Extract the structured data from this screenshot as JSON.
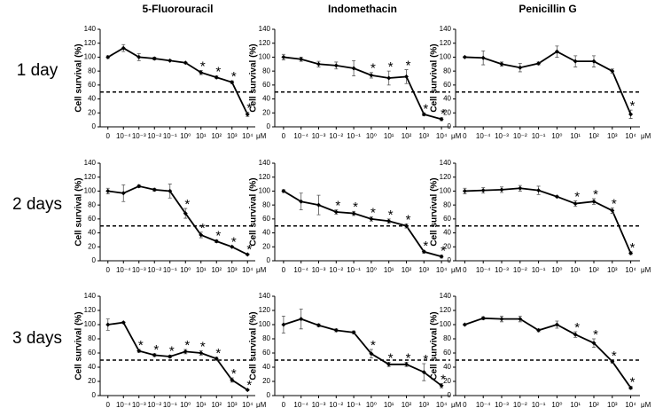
{
  "chart_data": [
    {
      "type": "line",
      "title": "5-Fluorouracil",
      "row_label": "1 day",
      "ylabel": "Cell survival (%)",
      "x_unit": "μM",
      "color": "#000000",
      "categories": [
        "0",
        "10⁻⁴",
        "10⁻³",
        "10⁻²",
        "10⁻¹",
        "10⁰",
        "10¹",
        "10²",
        "10³",
        "10⁴"
      ],
      "values": [
        100,
        113,
        100,
        98,
        95,
        92,
        78,
        71,
        64,
        18
      ],
      "errors": [
        2,
        5,
        5,
        2,
        1,
        1,
        3,
        2,
        2,
        3
      ],
      "significance": [
        null,
        null,
        null,
        null,
        null,
        null,
        "*",
        "*",
        "*",
        "*"
      ],
      "ylim": [
        0,
        140
      ],
      "yticks": [
        0,
        20,
        40,
        60,
        80,
        100,
        120,
        140
      ],
      "hline": 50
    },
    {
      "type": "line",
      "title": "Indomethacin",
      "ylabel": "Cell survival (%)",
      "x_unit": "μM",
      "color": "#000000",
      "categories": [
        "0",
        "10⁻⁴",
        "10⁻³",
        "10⁻²",
        "10⁻¹",
        "10⁰",
        "10¹",
        "10²",
        "10³",
        "10⁴"
      ],
      "values": [
        100,
        97,
        90,
        88,
        84,
        74,
        70,
        72,
        18,
        11
      ],
      "errors": [
        4,
        3,
        4,
        5,
        11,
        4,
        10,
        10,
        2,
        2
      ],
      "significance": [
        null,
        null,
        null,
        null,
        null,
        "*",
        "*",
        "*",
        "*",
        "*"
      ],
      "ylim": [
        0,
        140
      ],
      "yticks": [
        0,
        20,
        40,
        60,
        80,
        100,
        120,
        140
      ],
      "hline": 50
    },
    {
      "type": "line",
      "title": "Penicillin G",
      "ylabel": "Cell survival (%)",
      "x_unit": "μM",
      "color": "#000000",
      "categories": [
        "0",
        "10⁻⁴",
        "10⁻³",
        "10⁻²",
        "10⁻¹",
        "10⁰",
        "10¹",
        "10²",
        "10³",
        "10⁴"
      ],
      "values": [
        100,
        99,
        90,
        85,
        91,
        108,
        94,
        94,
        80,
        18
      ],
      "errors": [
        1,
        10,
        3,
        6,
        2,
        8,
        8,
        8,
        3,
        6
      ],
      "significance": [
        null,
        null,
        null,
        null,
        null,
        null,
        null,
        null,
        null,
        "*"
      ],
      "ylim": [
        0,
        140
      ],
      "yticks": [
        0,
        20,
        40,
        60,
        80,
        100,
        120,
        140
      ],
      "hline": 50
    },
    {
      "type": "line",
      "row_label": "2 days",
      "ylabel": "Cell survival (%)",
      "x_unit": "μM",
      "color": "#000000",
      "categories": [
        "0",
        "10⁻⁴",
        "10⁻³",
        "10⁻²",
        "10⁻¹",
        "10⁰",
        "10¹",
        "10²",
        "10³",
        "10⁴"
      ],
      "values": [
        100,
        97,
        107,
        102,
        100,
        68,
        37,
        28,
        20,
        9
      ],
      "errors": [
        4,
        12,
        2,
        2,
        10,
        7,
        4,
        2,
        1,
        1
      ],
      "significance": [
        null,
        null,
        null,
        null,
        null,
        "*",
        "*",
        "*",
        "*",
        "*"
      ],
      "ylim": [
        0,
        140
      ],
      "yticks": [
        0,
        20,
        40,
        60,
        80,
        100,
        120,
        140
      ],
      "hline": 50
    },
    {
      "type": "line",
      "ylabel": "Cell survival (%)",
      "x_unit": "μM",
      "color": "#000000",
      "categories": [
        "0",
        "10⁻⁴",
        "10⁻³",
        "10⁻²",
        "10⁻¹",
        "10⁰",
        "10¹",
        "10²",
        "10³",
        "10⁴"
      ],
      "values": [
        100,
        85,
        80,
        70,
        68,
        60,
        57,
        50,
        13,
        6
      ],
      "errors": [
        2,
        12,
        14,
        3,
        3,
        3,
        3,
        3,
        2,
        2
      ],
      "significance": [
        null,
        null,
        null,
        "*",
        "*",
        "*",
        "*",
        "*",
        "*",
        "*"
      ],
      "ylim": [
        0,
        140
      ],
      "yticks": [
        0,
        20,
        40,
        60,
        80,
        100,
        120,
        140
      ],
      "hline": 50
    },
    {
      "type": "line",
      "ylabel": "Cell survival (%)",
      "x_unit": "μM",
      "color": "#000000",
      "categories": [
        "0",
        "10⁻⁴",
        "10⁻³",
        "10⁻²",
        "10⁻¹",
        "10⁰",
        "10¹",
        "10²",
        "10³",
        "10⁴"
      ],
      "values": [
        100,
        101,
        102,
        104,
        101,
        92,
        82,
        85,
        72,
        11
      ],
      "errors": [
        4,
        4,
        4,
        4,
        6,
        1,
        4,
        4,
        4,
        2
      ],
      "significance": [
        null,
        null,
        null,
        null,
        null,
        null,
        "*",
        "*",
        "*",
        "*"
      ],
      "ylim": [
        0,
        140
      ],
      "yticks": [
        0,
        20,
        40,
        60,
        80,
        100,
        120,
        140
      ],
      "hline": 50
    },
    {
      "type": "line",
      "row_label": "3 days",
      "ylabel": "Cell survival (%)",
      "x_unit": "μM",
      "color": "#000000",
      "categories": [
        "0",
        "10⁻⁴",
        "10⁻³",
        "10⁻²",
        "10⁻¹",
        "10⁰",
        "10¹",
        "10²",
        "10³",
        "10⁴"
      ],
      "values": [
        100,
        103,
        63,
        57,
        55,
        62,
        60,
        52,
        22,
        8
      ],
      "errors": [
        8,
        1,
        2,
        2,
        2,
        3,
        3,
        2,
        3,
        1
      ],
      "significance": [
        null,
        null,
        "*",
        "*",
        "*",
        "*",
        "*",
        "*",
        "*",
        "*"
      ],
      "ylim": [
        0,
        140
      ],
      "yticks": [
        0,
        20,
        40,
        60,
        80,
        100,
        120,
        140
      ],
      "hline": 50
    },
    {
      "type": "line",
      "ylabel": "Cell survival (%)",
      "x_unit": "μM",
      "color": "#000000",
      "categories": [
        "0",
        "10⁻⁴",
        "10⁻³",
        "10⁻²",
        "10⁻¹",
        "10⁰",
        "10¹",
        "10²",
        "10³",
        "10⁴"
      ],
      "values": [
        100,
        108,
        99,
        92,
        89,
        59,
        44,
        44,
        33,
        14
      ],
      "errors": [
        12,
        14,
        2,
        2,
        2,
        6,
        3,
        3,
        12,
        3
      ],
      "significance": [
        null,
        null,
        null,
        null,
        null,
        "*",
        "*",
        "*",
        "*",
        "*"
      ],
      "ylim": [
        0,
        140
      ],
      "yticks": [
        0,
        20,
        40,
        60,
        80,
        100,
        120,
        140
      ],
      "hline": 50
    },
    {
      "type": "line",
      "ylabel": "Cell survival (%)",
      "x_unit": "μM",
      "color": "#000000",
      "categories": [
        "0",
        "10⁻⁴",
        "10⁻³",
        "10⁻²",
        "10⁻¹",
        "10⁰",
        "10¹",
        "10²",
        "10³",
        "10⁴"
      ],
      "values": [
        100,
        109,
        108,
        108,
        92,
        100,
        86,
        74,
        48,
        11
      ],
      "errors": [
        1,
        2,
        4,
        4,
        2,
        5,
        4,
        6,
        2,
        2
      ],
      "significance": [
        null,
        null,
        null,
        null,
        null,
        null,
        "*",
        "*",
        "*",
        "*"
      ],
      "ylim": [
        0,
        140
      ],
      "yticks": [
        0,
        20,
        40,
        60,
        80,
        100,
        120,
        140
      ],
      "hline": 50
    }
  ]
}
